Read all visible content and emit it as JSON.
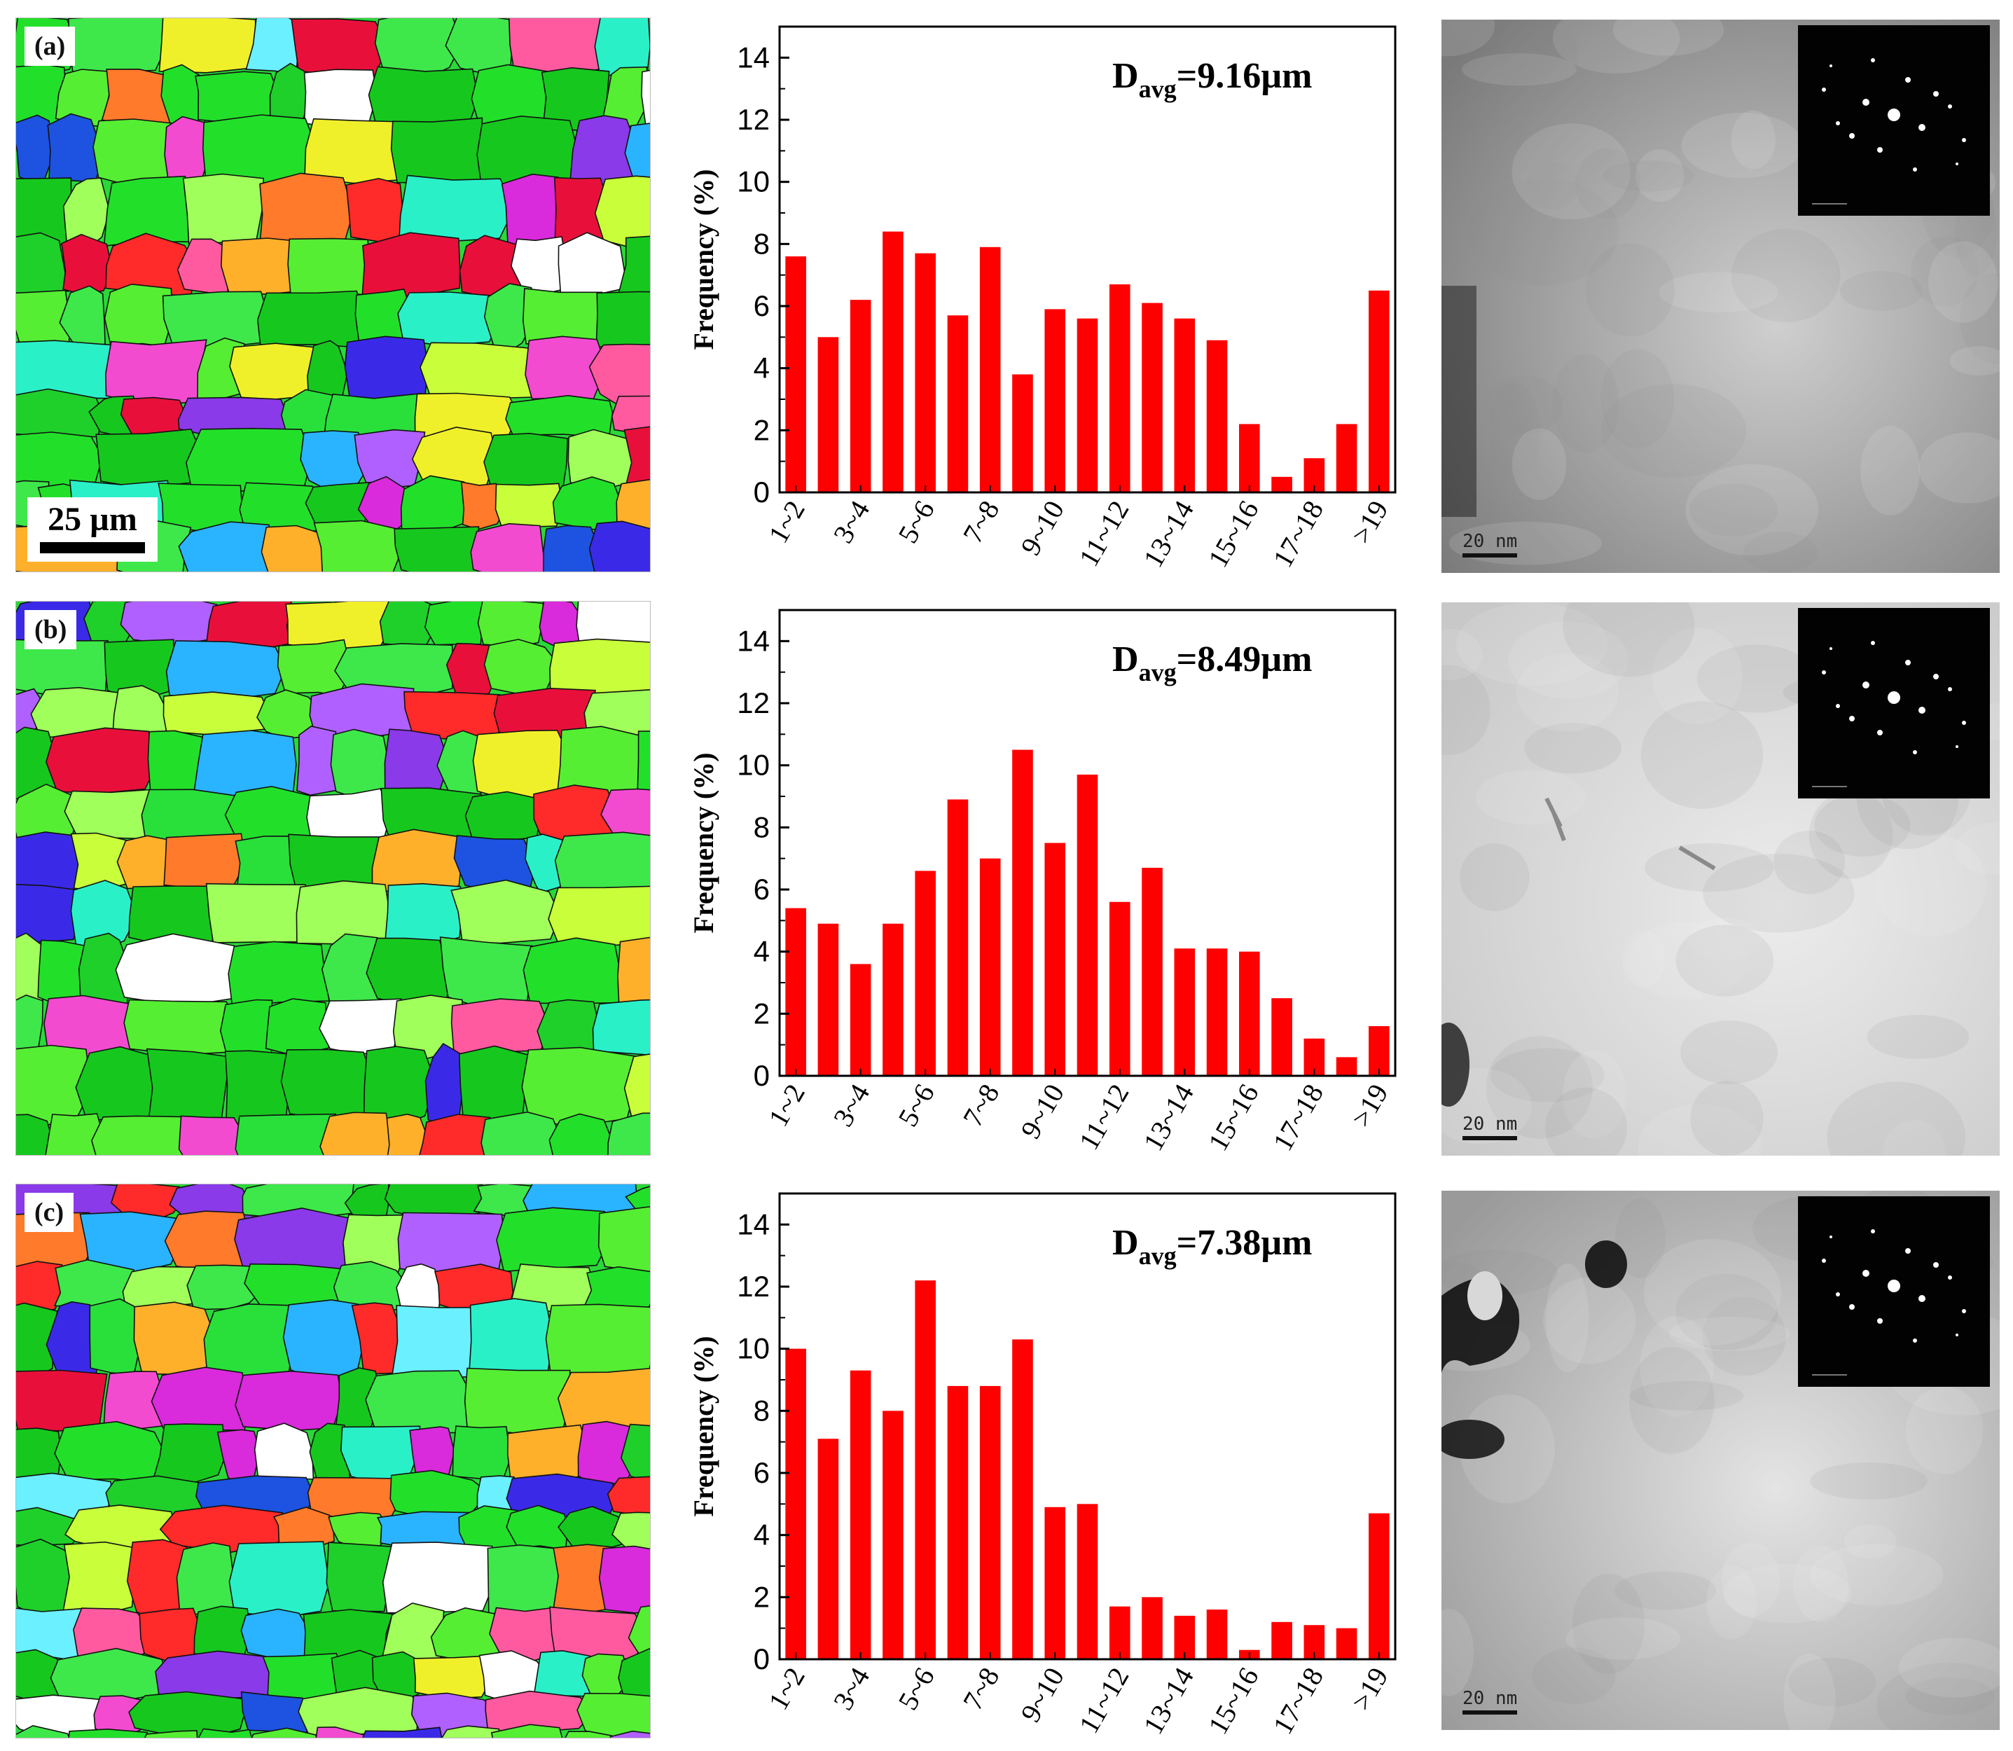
{
  "panels": [
    {
      "label": "(a)",
      "scale_bar": "25 µm",
      "davg_prefix": "D",
      "davg_sub": "avg",
      "davg_value": "=9.16µm",
      "tem_scale": "20  nm"
    },
    {
      "label": "(b)",
      "scale_bar": "",
      "davg_prefix": "D",
      "davg_sub": "avg",
      "davg_value": "=8.49µm",
      "tem_scale": "20  nm"
    },
    {
      "label": "(c)",
      "scale_bar": "",
      "davg_prefix": "D",
      "davg_sub": "avg",
      "davg_value": "=7.38µm",
      "tem_scale": "20  nm"
    }
  ],
  "colors": {
    "bar": "#ff0000",
    "axis": "#000000"
  },
  "chart_data": [
    {
      "type": "bar",
      "title": "",
      "annotation": "Davg=9.16µm",
      "xlabel": "",
      "ylabel": "Frequency (%)",
      "ylim": [
        0,
        15
      ],
      "yticks": [
        0,
        2,
        4,
        6,
        8,
        10,
        12,
        14
      ],
      "categories": [
        "1~2",
        "2~3",
        "3~4",
        "4~5",
        "5~6",
        "6~7",
        "7~8",
        "8~9",
        "9~10",
        "10~11",
        "11~12",
        "12~13",
        "13~14",
        "14~15",
        "15~16",
        "16~17",
        "17~18",
        "18~19",
        ">19"
      ],
      "tick_labels": [
        "1~2",
        "3~4",
        "5~6",
        "7~8",
        "9~10",
        "11~12",
        "13~14",
        "15~16",
        "17~18",
        ">19"
      ],
      "values": [
        7.6,
        5.0,
        6.2,
        8.4,
        7.7,
        5.7,
        7.9,
        3.8,
        5.9,
        5.6,
        6.7,
        6.1,
        5.6,
        4.9,
        2.2,
        0.5,
        1.1,
        2.2,
        6.5
      ]
    },
    {
      "type": "bar",
      "title": "",
      "annotation": "Davg=8.49µm",
      "xlabel": "",
      "ylabel": "Frequency (%)",
      "ylim": [
        0,
        15
      ],
      "yticks": [
        0,
        2,
        4,
        6,
        8,
        10,
        12,
        14
      ],
      "categories": [
        "1~2",
        "2~3",
        "3~4",
        "4~5",
        "5~6",
        "6~7",
        "7~8",
        "8~9",
        "9~10",
        "10~11",
        "11~12",
        "12~13",
        "13~14",
        "14~15",
        "15~16",
        "16~17",
        "17~18",
        "18~19",
        ">19"
      ],
      "tick_labels": [
        "1~2",
        "3~4",
        "5~6",
        "7~8",
        "9~10",
        "11~12",
        "13~14",
        "15~16",
        "17~18",
        ">19"
      ],
      "values": [
        5.4,
        4.9,
        3.6,
        4.9,
        6.6,
        8.9,
        7.0,
        10.5,
        7.5,
        9.7,
        5.6,
        6.7,
        4.1,
        4.1,
        4.0,
        2.5,
        1.2,
        0.6,
        1.6
      ]
    },
    {
      "type": "bar",
      "title": "",
      "annotation": "Davg=7.38µm",
      "xlabel": "",
      "ylabel": "Frequency (%)",
      "ylim": [
        0,
        15
      ],
      "yticks": [
        0,
        2,
        4,
        6,
        8,
        10,
        12,
        14
      ],
      "categories": [
        "1~2",
        "2~3",
        "3~4",
        "4~5",
        "5~6",
        "6~7",
        "7~8",
        "8~9",
        "9~10",
        "10~11",
        "11~12",
        "12~13",
        "13~14",
        "14~15",
        "15~16",
        "16~17",
        "17~18",
        "18~19",
        ">19"
      ],
      "tick_labels": [
        "1~2",
        "3~4",
        "5~6",
        "7~8",
        "9~10",
        "11~12",
        "13~14",
        "15~16",
        "17~18",
        ">19"
      ],
      "values": [
        10.0,
        7.1,
        9.3,
        8.0,
        12.2,
        8.8,
        8.8,
        10.3,
        4.9,
        5.0,
        1.7,
        2.0,
        1.4,
        1.6,
        0.3,
        1.2,
        1.1,
        1.0,
        4.7
      ]
    }
  ]
}
